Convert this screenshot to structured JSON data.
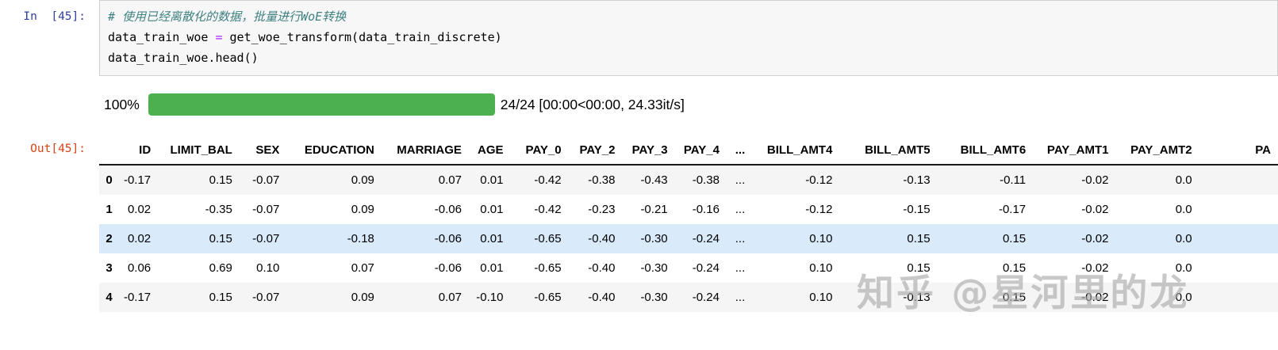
{
  "colors": {
    "in_prompt": "#303F9F",
    "out_prompt": "#D84315",
    "bar": "#4caf50",
    "comment": "#408080",
    "op": "#AA22FF",
    "stripe": "#f5f5f5",
    "hover": "#d9eafb",
    "watermark": "#a8a8a8"
  },
  "notebook": {
    "input_prompt": "In  [45]:",
    "output_prompt": "Out[45]:",
    "code": {
      "comment": "# 使用已经离散化的数据，批量进行WoE转换",
      "assign_lhs": "data_train_woe ",
      "assign_op": "=",
      "assign_rhs": " get_woe_transform(data_train_discrete)",
      "line3": "data_train_woe.head()"
    },
    "progress": {
      "percent_label": "100%",
      "fraction": 1.0,
      "stats": "24/24 [00:00<00:00, 24.33it/s]"
    }
  },
  "table": {
    "columns": [
      "",
      "ID",
      "LIMIT_BAL",
      "SEX",
      "EDUCATION",
      "MARRIAGE",
      "AGE",
      "PAY_0",
      "PAY_2",
      "PAY_3",
      "PAY_4",
      "...",
      "BILL_AMT4",
      "BILL_AMT5",
      "BILL_AMT6",
      "PAY_AMT1",
      "PAY_AMT2",
      "PA"
    ],
    "highlighted_row": 2,
    "rows": [
      {
        "index": "0",
        "values": [
          "-0.17",
          "0.15",
          "-0.07",
          "0.09",
          "0.07",
          "0.01",
          "-0.42",
          "-0.38",
          "-0.43",
          "-0.38",
          "...",
          "-0.12",
          "-0.13",
          "-0.11",
          "-0.02",
          "0.0",
          ""
        ]
      },
      {
        "index": "1",
        "values": [
          "0.02",
          "-0.35",
          "-0.07",
          "0.09",
          "-0.06",
          "0.01",
          "-0.42",
          "-0.23",
          "-0.21",
          "-0.16",
          "...",
          "-0.12",
          "-0.15",
          "-0.17",
          "-0.02",
          "0.0",
          ""
        ]
      },
      {
        "index": "2",
        "values": [
          "0.02",
          "0.15",
          "-0.07",
          "-0.18",
          "-0.06",
          "0.01",
          "-0.65",
          "-0.40",
          "-0.30",
          "-0.24",
          "...",
          "0.10",
          "0.15",
          "0.15",
          "-0.02",
          "0.0",
          ""
        ]
      },
      {
        "index": "3",
        "values": [
          "0.06",
          "0.69",
          "0.10",
          "0.07",
          "-0.06",
          "0.01",
          "-0.65",
          "-0.40",
          "-0.30",
          "-0.24",
          "...",
          "0.10",
          "0.15",
          "0.15",
          "-0.02",
          "0.0",
          ""
        ]
      },
      {
        "index": "4",
        "values": [
          "-0.17",
          "0.15",
          "-0.07",
          "0.09",
          "0.07",
          "-0.10",
          "-0.65",
          "-0.40",
          "-0.30",
          "-0.24",
          "...",
          "0.10",
          "-0.13",
          "0.15",
          "-0.02",
          "0.0",
          ""
        ]
      }
    ]
  },
  "watermark": "知乎 @星河里的龙"
}
